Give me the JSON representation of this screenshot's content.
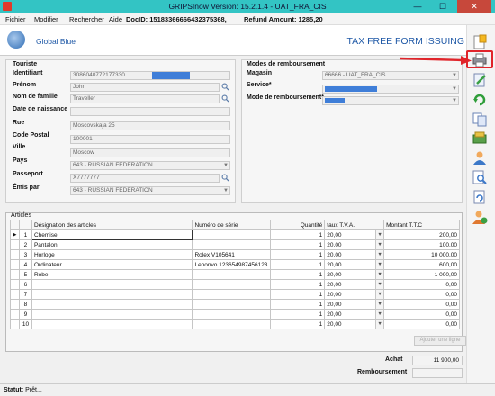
{
  "window": {
    "title": "GRIPSInow Version: 15.2.1.4 - UAT_FRA_CIS",
    "minimize": "—",
    "maximize": "☐",
    "close": "✕"
  },
  "menu": {
    "items": [
      "Fichier",
      "Modifier",
      "Rechercher",
      "Aide"
    ],
    "doc_id": "DocID: 15183366666432375368,",
    "refund": "Refund Amount: 1285,20"
  },
  "header": {
    "brand": "Global Blue",
    "form_title": "TAX FREE FORM ISSUING"
  },
  "tourist": {
    "section_label": "Touriste",
    "fields": [
      {
        "label": "Identifiant",
        "value": "3086040772177330"
      },
      {
        "label": "Prénom",
        "value": "John"
      },
      {
        "label": "Nom de famille",
        "value": "Traveller"
      },
      {
        "label": "Date de naissance",
        "value": ""
      },
      {
        "label": "Rue",
        "value": "Moscovskaja 25"
      },
      {
        "label": "Code Postal",
        "value": "100001"
      },
      {
        "label": "Ville",
        "value": "Moscow"
      },
      {
        "label": "Pays",
        "value": "643 - RUSSIAN FEDERATION"
      },
      {
        "label": "Passeport",
        "value": "X7777777"
      },
      {
        "label": "Émis par",
        "value": "643 - RUSSIAN FEDERATION"
      }
    ]
  },
  "refund": {
    "section_label": "Modes de remboursement",
    "fields": [
      {
        "label": "Magasin",
        "value": "66666 - UAT_FRA_CIS"
      },
      {
        "label": "Service*",
        "value": ""
      },
      {
        "label": "Mode de remboursement*",
        "value": ""
      }
    ]
  },
  "articles": {
    "section_label": "Articles",
    "columns": [
      "Désignation des articles",
      "Numéro de série",
      "Quantité",
      "taux T.V.A.",
      "Montant T.T.C"
    ],
    "rows": [
      {
        "n": "1",
        "designation": "Chemise",
        "serie": "",
        "qty": "1",
        "tva": "20,00",
        "montant": "200,00"
      },
      {
        "n": "2",
        "designation": "Pantalon",
        "serie": "",
        "qty": "1",
        "tva": "20,00",
        "montant": "100,00"
      },
      {
        "n": "3",
        "designation": "Horloge",
        "serie": "Rolex V105641",
        "qty": "1",
        "tva": "20,00",
        "montant": "10 000,00"
      },
      {
        "n": "4",
        "designation": "Ordinateur",
        "serie": "Lenonvo 123654987456123",
        "qty": "1",
        "tva": "20,00",
        "montant": "600,00"
      },
      {
        "n": "5",
        "designation": "Robe",
        "serie": "",
        "qty": "1",
        "tva": "20,00",
        "montant": "1 000,00"
      },
      {
        "n": "6",
        "designation": "",
        "serie": "",
        "qty": "1",
        "tva": "20,00",
        "montant": "0,00"
      },
      {
        "n": "7",
        "designation": "",
        "serie": "",
        "qty": "1",
        "tva": "20,00",
        "montant": "0,00"
      },
      {
        "n": "8",
        "designation": "",
        "serie": "",
        "qty": "1",
        "tva": "20,00",
        "montant": "0,00"
      },
      {
        "n": "9",
        "designation": "",
        "serie": "",
        "qty": "1",
        "tva": "20,00",
        "montant": "0,00"
      },
      {
        "n": "10",
        "designation": "",
        "serie": "",
        "qty": "1",
        "tva": "20,00",
        "montant": "0,00"
      }
    ],
    "add_line": "Ajouter une ligne"
  },
  "totals": {
    "achat_label": "Achat",
    "achat_value": "11 900,00",
    "remb_label": "Remboursement",
    "remb_value": ""
  },
  "status": {
    "label": "Statut:",
    "value": "Prêt..."
  },
  "toolbar_icons": [
    "new-form-icon",
    "print-icon",
    "edit-icon",
    "refresh-icon",
    "copy-icon",
    "money-icon",
    "user-icon",
    "search-document-icon",
    "document-refresh-icon",
    "user-add-icon"
  ],
  "colors": {
    "titlebar": "#33c4c4",
    "accent": "#1e58a6",
    "highlight": "#3f7ed8",
    "annotation": "#e0242a"
  }
}
